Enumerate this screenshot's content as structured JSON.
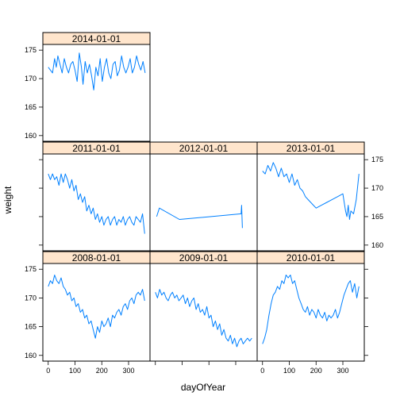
{
  "chart_data": {
    "type": "line",
    "layout": "trellis 3 columns x 3 rows",
    "xlabel": "dayOfYear",
    "ylabel": "weight",
    "xlim": [
      -20,
      380
    ],
    "ylim": [
      159,
      176
    ],
    "x_ticks": [
      0,
      100,
      200,
      300
    ],
    "y_ticks": [
      160,
      165,
      170,
      175
    ],
    "colors": {
      "line": "#0080ff",
      "strip": "#ffe5cc"
    },
    "panels": [
      {
        "strip": "2014-01-01",
        "x": [
          0,
          8,
          16,
          24,
          30,
          36,
          44,
          52,
          60,
          68,
          76,
          84,
          92,
          100,
          108,
          116,
          124,
          130,
          138,
          146,
          154,
          162,
          170,
          178,
          186,
          194,
          202,
          210,
          218,
          226,
          234,
          242,
          250,
          258,
          266,
          274,
          282,
          290,
          298,
          306,
          314,
          322,
          330,
          338,
          346,
          354,
          362
        ],
        "y": [
          172,
          171.5,
          171,
          173.5,
          172,
          174,
          172.5,
          171,
          173.5,
          172,
          171,
          172.5,
          173,
          171.5,
          169.5,
          174.5,
          172,
          169,
          173,
          171,
          172.5,
          170.5,
          168,
          172,
          170.5,
          173.5,
          169.5,
          172,
          173.5,
          171,
          170,
          172.5,
          173,
          170.5,
          171.5,
          174,
          172,
          171,
          172,
          173.5,
          171,
          172,
          174,
          172.5,
          171.5,
          173,
          171
        ]
      },
      {
        "strip": "2011-01-01",
        "x": [
          0,
          8,
          16,
          24,
          32,
          40,
          48,
          56,
          64,
          72,
          80,
          88,
          96,
          104,
          112,
          120,
          128,
          136,
          144,
          152,
          160,
          168,
          176,
          184,
          192,
          200,
          208,
          216,
          224,
          232,
          240,
          248,
          256,
          264,
          272,
          280,
          288,
          296,
          304,
          312,
          320,
          328,
          336,
          344,
          352,
          360
        ],
        "y": [
          172.5,
          171.5,
          172.5,
          171.5,
          172,
          170.5,
          172.5,
          171,
          172.5,
          171.5,
          170,
          171.5,
          169.5,
          170.5,
          168,
          169,
          167.5,
          168.5,
          166,
          167,
          165.5,
          166.5,
          164.5,
          165.5,
          164,
          165,
          163.5,
          164.5,
          165,
          163.5,
          164.5,
          165,
          163.5,
          164.5,
          164,
          165,
          163.5,
          164.5,
          165,
          164,
          163.5,
          165,
          164.5,
          164,
          165.5,
          162
        ]
      },
      {
        "strip": "2012-01-01",
        "x": [
          5,
          15,
          90,
          320,
          322,
          325
        ],
        "y": [
          165,
          166.5,
          164.5,
          165.5,
          167,
          163
        ]
      },
      {
        "strip": "2013-01-01",
        "x": [
          0,
          10,
          20,
          30,
          40,
          50,
          60,
          70,
          80,
          90,
          100,
          110,
          120,
          130,
          140,
          150,
          160,
          170,
          180,
          190,
          200,
          220,
          240,
          260,
          280,
          300,
          310,
          315,
          320,
          325,
          330,
          340,
          350,
          360
        ],
        "y": [
          173,
          172.5,
          174,
          173,
          174.5,
          173.5,
          172,
          173.5,
          172,
          172.5,
          171,
          172.5,
          170.5,
          171.5,
          170,
          169.5,
          168.5,
          168,
          167.5,
          167,
          166.5,
          167,
          167.5,
          168,
          168.5,
          169,
          166,
          165,
          167,
          164.5,
          166,
          165.5,
          168,
          172.5
        ]
      },
      {
        "strip": "2008-01-01",
        "x": [
          0,
          8,
          16,
          24,
          32,
          40,
          48,
          56,
          64,
          72,
          80,
          88,
          96,
          104,
          112,
          120,
          128,
          136,
          144,
          152,
          160,
          168,
          176,
          184,
          192,
          200,
          208,
          216,
          224,
          232,
          240,
          248,
          256,
          264,
          272,
          280,
          288,
          296,
          304,
          312,
          320,
          328,
          336,
          344,
          352,
          360
        ],
        "y": [
          172,
          173,
          172.5,
          174,
          173,
          172.5,
          173.5,
          172,
          171.5,
          170.5,
          171,
          169.5,
          170,
          168.5,
          169,
          167.5,
          168,
          166.5,
          167,
          165.5,
          166,
          164.5,
          163,
          165,
          164,
          166,
          165,
          165.5,
          166.5,
          165,
          167,
          166.5,
          167.5,
          168,
          167,
          168.5,
          169,
          168,
          169.5,
          170,
          169,
          170.5,
          171,
          170.5,
          171.5,
          169.5
        ]
      },
      {
        "strip": "2009-01-01",
        "x": [
          0,
          8,
          16,
          24,
          32,
          40,
          48,
          56,
          64,
          72,
          80,
          88,
          96,
          104,
          112,
          120,
          128,
          136,
          144,
          152,
          160,
          168,
          176,
          184,
          192,
          200,
          208,
          216,
          224,
          232,
          240,
          248,
          256,
          264,
          272,
          280,
          288,
          296,
          304,
          312,
          320,
          328,
          336,
          344,
          352,
          360
        ],
        "y": [
          171,
          170,
          171.5,
          170.5,
          171,
          170,
          169.5,
          170.5,
          171,
          170,
          170.5,
          169.5,
          170,
          170.5,
          169,
          170,
          168.5,
          169.5,
          170,
          168,
          169,
          167.5,
          168,
          167,
          168.5,
          166.5,
          167,
          165,
          166,
          164.5,
          165.5,
          163.5,
          164.5,
          163,
          162.5,
          163.5,
          162,
          163,
          161.5,
          162.5,
          163,
          162,
          162.5,
          163,
          162.5,
          163
        ]
      },
      {
        "strip": "2010-01-01",
        "x": [
          0,
          8,
          16,
          24,
          32,
          40,
          48,
          56,
          64,
          72,
          80,
          88,
          96,
          104,
          112,
          120,
          128,
          136,
          144,
          152,
          160,
          168,
          176,
          184,
          192,
          200,
          208,
          216,
          224,
          232,
          240,
          248,
          256,
          264,
          272,
          280,
          288,
          296,
          304,
          312,
          320,
          328,
          336,
          344,
          352,
          360
        ],
        "y": [
          162,
          163,
          164.5,
          167,
          169,
          170.5,
          171,
          172,
          171.5,
          173,
          172.5,
          174,
          173.5,
          174,
          172.5,
          173,
          171.5,
          170,
          169,
          168,
          167.5,
          168.5,
          167,
          168,
          167.5,
          166.5,
          168,
          167,
          166.5,
          167.5,
          166,
          167,
          166.5,
          167,
          168,
          166.5,
          167.5,
          169,
          170.5,
          171.5,
          172.5,
          173,
          171,
          172.5,
          170,
          172
        ]
      }
    ]
  }
}
